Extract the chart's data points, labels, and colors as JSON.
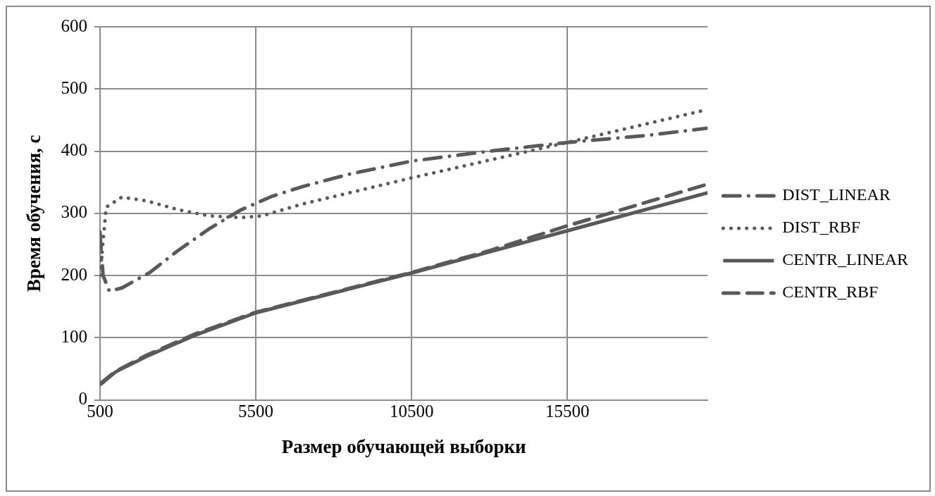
{
  "chart_data": {
    "type": "line",
    "xlabel": "Размер обучающей выборки",
    "ylabel": "Время обучения, с",
    "xlim": [
      500,
      20000
    ],
    "xticks": [
      500,
      5500,
      10500,
      15500
    ],
    "ylim": [
      0,
      600
    ],
    "yticks": [
      0,
      100,
      200,
      300,
      400,
      500,
      600
    ],
    "grid": true,
    "legend": "right",
    "marker": "none",
    "series": [
      {
        "name": "DIST_LINEAR",
        "color": "#595959",
        "line_style": "dashdot",
        "x": [
          500,
          600,
          800,
          1200,
          2100,
          3000,
          4000,
          5000,
          6000,
          7000,
          8500,
          10500,
          13000,
          15500,
          18000,
          20000
        ],
        "values": [
          270,
          200,
          175,
          180,
          205,
          240,
          275,
          305,
          327,
          343,
          363,
          384,
          400,
          414,
          425,
          437
        ]
      },
      {
        "name": "DIST_RBF",
        "color": "#595959",
        "line_style": "dotted",
        "x": [
          500,
          700,
          1200,
          2000,
          3000,
          4000,
          5000,
          5700,
          7000,
          10500,
          14000,
          15500,
          20000
        ],
        "values": [
          200,
          310,
          326,
          320,
          306,
          296,
          293,
          296,
          315,
          357,
          397,
          414,
          467
        ]
      },
      {
        "name": "CENTR_LINEAR",
        "color": "#595959",
        "line_style": "solid",
        "x": [
          500,
          1000,
          2000,
          3500,
          5500,
          8000,
          10500,
          15500,
          20000
        ],
        "values": [
          24,
          45,
          70,
          103,
          140,
          172,
          204,
          272,
          333
        ]
      },
      {
        "name": "CENTR_RBF",
        "color": "#595959",
        "line_style": "dashed",
        "x": [
          500,
          1000,
          2000,
          3500,
          5500,
          8000,
          10500,
          13000,
          15500,
          20000
        ],
        "values": [
          26,
          46,
          72,
          105,
          141,
          173,
          205,
          240,
          280,
          347
        ]
      }
    ]
  }
}
